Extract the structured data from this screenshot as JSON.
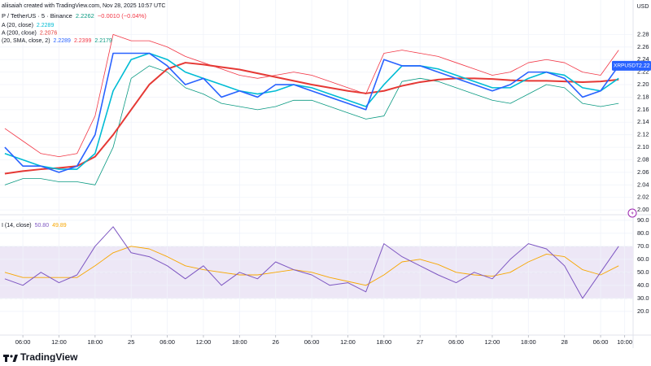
{
  "header": {
    "credit": "aliisaiah created with TradingView.com, Nov 28, 2025 10:57 UTC",
    "symbol": "P / TetherUS · 5 · Binance",
    "price": "2.2262",
    "change": "−0.0010 (−0.04%)",
    "currency": "USD"
  },
  "footer": {
    "brand": "TradingView"
  },
  "chart_data": [
    {
      "type": "line",
      "pane": "price",
      "legend": [
        {
          "name": "A (20, close)",
          "values": [
            "2.2289"
          ],
          "colors": [
            "#00bcd4"
          ]
        },
        {
          "name": "A (200, close)",
          "values": [
            "2.2076"
          ],
          "colors": [
            "#e53935"
          ]
        },
        {
          "name": "(20, SMA, close, 2)",
          "values": [
            "2.2289",
            "2.2399",
            "2.2179"
          ],
          "colors": [
            "#2962ff",
            "#f23645",
            "#089981"
          ]
        }
      ],
      "last_price": {
        "symbol": "XRPUSDT",
        "label": "2.22",
        "color": "#2962ff"
      },
      "xlim": [
        2.2,
        107.4
      ],
      "x": [
        3,
        6,
        9,
        12,
        15,
        18,
        21,
        24,
        27,
        30,
        33,
        36,
        39,
        42,
        45,
        48,
        51,
        54,
        57,
        60,
        63,
        66,
        69,
        72,
        75,
        78,
        81,
        84,
        87,
        90,
        93,
        96,
        99,
        102,
        105
      ],
      "ylim": [
        1.995,
        2.335
      ],
      "yticks": [
        {
          "value": 2.0,
          "label": "2.00"
        },
        2.02,
        2.04,
        2.06,
        2.08,
        {
          "value": 2.1,
          "label": "2.10"
        },
        2.12,
        2.14,
        2.16,
        2.18,
        {
          "value": 2.2,
          "label": "2.20"
        },
        2.22,
        2.24,
        2.26,
        2.28
      ],
      "series": [
        {
          "name": "BB upper",
          "color": "#f23645",
          "width": 0.8,
          "values": [
            2.13,
            2.11,
            2.09,
            2.085,
            2.09,
            2.15,
            2.28,
            2.27,
            2.27,
            2.26,
            2.245,
            2.235,
            2.225,
            2.215,
            2.21,
            2.215,
            2.22,
            2.215,
            2.205,
            2.195,
            2.185,
            2.25,
            2.255,
            2.25,
            2.245,
            2.235,
            2.225,
            2.215,
            2.22,
            2.235,
            2.24,
            2.235,
            2.22,
            2.215,
            2.255
          ]
        },
        {
          "name": "BB lower",
          "color": "#089981",
          "width": 0.8,
          "values": [
            2.04,
            2.05,
            2.05,
            2.045,
            2.045,
            2.04,
            2.1,
            2.21,
            2.23,
            2.22,
            2.195,
            2.185,
            2.17,
            2.165,
            2.16,
            2.165,
            2.175,
            2.175,
            2.165,
            2.155,
            2.145,
            2.15,
            2.205,
            2.21,
            2.205,
            2.195,
            2.185,
            2.175,
            2.17,
            2.185,
            2.2,
            2.195,
            2.17,
            2.165,
            2.17
          ]
        },
        {
          "name": "MA 200",
          "color": "#e53935",
          "width": 2,
          "values": [
            2.058,
            2.062,
            2.065,
            2.067,
            2.07,
            2.085,
            2.12,
            2.16,
            2.2,
            2.225,
            2.235,
            2.232,
            2.228,
            2.224,
            2.218,
            2.212,
            2.206,
            2.2,
            2.195,
            2.19,
            2.186,
            2.19,
            2.198,
            2.204,
            2.208,
            2.21,
            2.21,
            2.209,
            2.207,
            2.206,
            2.206,
            2.205,
            2.204,
            2.205,
            2.208
          ]
        },
        {
          "name": "MA 20",
          "color": "#00bcd4",
          "width": 1.6,
          "values": [
            2.09,
            2.08,
            2.07,
            2.065,
            2.065,
            2.09,
            2.19,
            2.24,
            2.25,
            2.24,
            2.22,
            2.21,
            2.2,
            2.19,
            2.185,
            2.19,
            2.2,
            2.195,
            2.185,
            2.175,
            2.165,
            2.2,
            2.23,
            2.23,
            2.225,
            2.215,
            2.205,
            2.195,
            2.195,
            2.21,
            2.22,
            2.215,
            2.195,
            2.19,
            2.21
          ]
        },
        {
          "name": "Price",
          "color": "#2962ff",
          "width": 1.6,
          "values": [
            2.1,
            2.07,
            2.07,
            2.06,
            2.07,
            2.12,
            2.25,
            2.25,
            2.25,
            2.23,
            2.2,
            2.21,
            2.18,
            2.19,
            2.18,
            2.2,
            2.2,
            2.19,
            2.18,
            2.17,
            2.16,
            2.24,
            2.23,
            2.23,
            2.22,
            2.21,
            2.2,
            2.19,
            2.2,
            2.22,
            2.22,
            2.21,
            2.18,
            2.19,
            2.23
          ]
        }
      ]
    },
    {
      "type": "line",
      "pane": "rsi",
      "legend": [
        {
          "name": "I (14, close)",
          "values": [
            "50.80",
            "49.89"
          ],
          "colors": [
            "#7e57c2",
            "#f7a600"
          ]
        }
      ],
      "band": [
        30,
        70
      ],
      "band_color": "#ede7f6",
      "reference_lines": [
        70,
        50,
        30
      ],
      "xlim": [
        2.2,
        107.4
      ],
      "x": [
        3,
        6,
        9,
        12,
        15,
        18,
        21,
        24,
        27,
        30,
        33,
        36,
        39,
        42,
        45,
        48,
        51,
        54,
        57,
        60,
        63,
        66,
        69,
        72,
        75,
        78,
        81,
        84,
        87,
        90,
        93,
        96,
        99,
        102,
        105
      ],
      "xticks": [
        {
          "value": 6,
          "label": "06:00"
        },
        {
          "value": 12,
          "label": "12:00"
        },
        {
          "value": 18,
          "label": "18:00"
        },
        {
          "value": 24,
          "label": "25"
        },
        {
          "value": 30,
          "label": "06:00"
        },
        {
          "value": 36,
          "label": "12:00"
        },
        {
          "value": 42,
          "label": "18:00"
        },
        {
          "value": 48,
          "label": "26"
        },
        {
          "value": 54,
          "label": "06:00"
        },
        {
          "value": 60,
          "label": "12:00"
        },
        {
          "value": 66,
          "label": "18:00"
        },
        {
          "value": 72,
          "label": "27"
        },
        {
          "value": 78,
          "label": "06:00"
        },
        {
          "value": 84,
          "label": "12:00"
        },
        {
          "value": 90,
          "label": "18:00"
        },
        {
          "value": 96,
          "label": "28"
        },
        {
          "value": 102,
          "label": "06:00"
        },
        {
          "value": 106,
          "label": "10:00"
        }
      ],
      "ylim": [
        3,
        93
      ],
      "yticks": [
        {
          "value": 20,
          "label": "20.0"
        },
        {
          "value": 30,
          "label": "30.0"
        },
        {
          "value": 40,
          "label": "40.0"
        },
        {
          "value": 50,
          "label": "50.0"
        },
        {
          "value": 60,
          "label": "60.0"
        },
        {
          "value": 70,
          "label": "70.0"
        },
        {
          "value": 80,
          "label": "80.0"
        },
        {
          "value": 90,
          "label": "90.0"
        }
      ],
      "series": [
        {
          "name": "RSI MA",
          "color": "#f7a600",
          "width": 0.9,
          "values": [
            50,
            46,
            46,
            46,
            46,
            55,
            65,
            70,
            68,
            62,
            55,
            52,
            50,
            48,
            48,
            50,
            52,
            50,
            46,
            43,
            40,
            48,
            58,
            60,
            56,
            50,
            48,
            47,
            50,
            58,
            64,
            62,
            52,
            48,
            55
          ]
        },
        {
          "name": "RSI",
          "color": "#7e57c2",
          "width": 1,
          "values": [
            45,
            40,
            50,
            42,
            48,
            70,
            85,
            65,
            62,
            55,
            45,
            55,
            40,
            50,
            45,
            58,
            52,
            48,
            40,
            42,
            35,
            72,
            62,
            55,
            48,
            42,
            50,
            45,
            60,
            72,
            68,
            55,
            30,
            50,
            70
          ]
        }
      ]
    }
  ]
}
